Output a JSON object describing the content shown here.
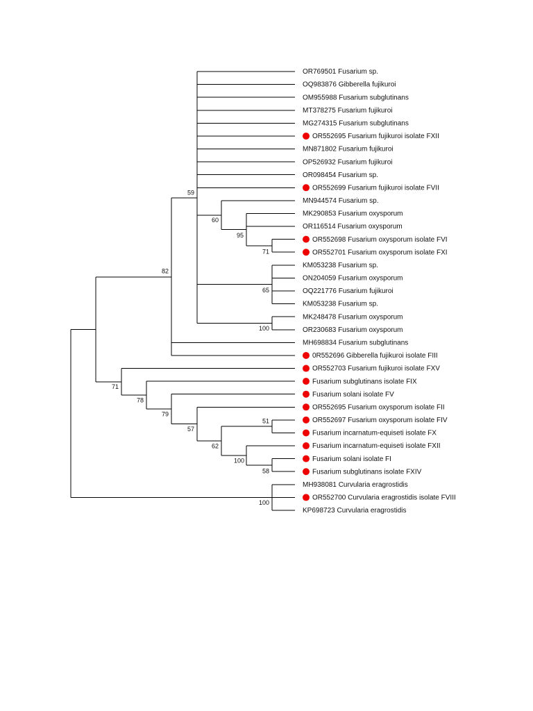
{
  "tree": {
    "leaves": [
      {
        "label": "OR769501 Fusarium sp.",
        "marked": false
      },
      {
        "label": "OQ983876 Gibberella fujikuroi",
        "marked": false
      },
      {
        "label": "OM955988 Fusarium subglutinans",
        "marked": false
      },
      {
        "label": "MT378275 Fusarium fujikuroi",
        "marked": false
      },
      {
        "label": "MG274315 Fusarium subglutinans",
        "marked": false
      },
      {
        "label": "OR552695 Fusarium fujikuroi isolate FXII",
        "marked": true
      },
      {
        "label": "MN871802 Fusarium fujikuroi",
        "marked": false
      },
      {
        "label": "OP526932 Fusarium fujikuroi",
        "marked": false
      },
      {
        "label": "OR098454 Fusarium sp.",
        "marked": false
      },
      {
        "label": "OR552699 Fusarium fujikuroi isolate FVII",
        "marked": true
      },
      {
        "label": "MN944574 Fusarium sp.",
        "marked": false
      },
      {
        "label": "MK290853 Fusarium oxysporum",
        "marked": false
      },
      {
        "label": "OR116514 Fusarium oxysporum",
        "marked": false
      },
      {
        "label": "OR552698 Fusarium oxysporum isolate FVI",
        "marked": true
      },
      {
        "label": "OR552701 Fusarium oxysporum isolate FXI",
        "marked": true
      },
      {
        "label": "KM053238 Fusarium sp.",
        "marked": false
      },
      {
        "label": "ON204059 Fusarium oxysporum",
        "marked": false
      },
      {
        "label": "OQ221776 Fusarium fujikuroi",
        "marked": false
      },
      {
        "label": "KM053238 Fusarium sp.",
        "marked": false
      },
      {
        "label": "MK248478 Fusarium oxysporum",
        "marked": false
      },
      {
        "label": "OR230683 Fusarium oxysporum",
        "marked": false
      },
      {
        "label": "MH698834 Fusarium subglutinans",
        "marked": false
      },
      {
        "label": "0R552696 Gibberella fujikuroi isolate FIII",
        "marked": true
      },
      {
        "label": "OR552703 Fusarium fujikuroi isolate FXV",
        "marked": true
      },
      {
        "label": "Fusarium subglutinans isolate FIX",
        "marked": true
      },
      {
        "label": "Fusarium solani isolate FV",
        "marked": true
      },
      {
        "label": "OR552695 Fusarium oxysporum isolate FII",
        "marked": true
      },
      {
        "label": "OR552697 Fusarium oxysporum isolate FIV",
        "marked": true
      },
      {
        "label": "Fusarium incarnatum-equiseti isolate FX",
        "marked": true
      },
      {
        "label": "Fusarium incarnatum-equiseti isolate FXII",
        "marked": true
      },
      {
        "label": "Fusarium solani isolate FI",
        "marked": true
      },
      {
        "label": "Fusarium subglutinans isolate FXIV",
        "marked": true
      },
      {
        "label": "MH938081 Curvularia eragrostidis",
        "marked": false
      },
      {
        "label": "OR552700 Curvularia eragrostidis isolate FVIII",
        "marked": true
      },
      {
        "label": "KP698723 Curvularia eragrostidis",
        "marked": false
      }
    ],
    "supports": [
      59,
      82,
      60,
      95,
      71,
      65,
      100,
      71,
      78,
      79,
      57,
      62,
      51,
      100,
      58,
      100
    ],
    "marker_color": "#ee0000"
  }
}
